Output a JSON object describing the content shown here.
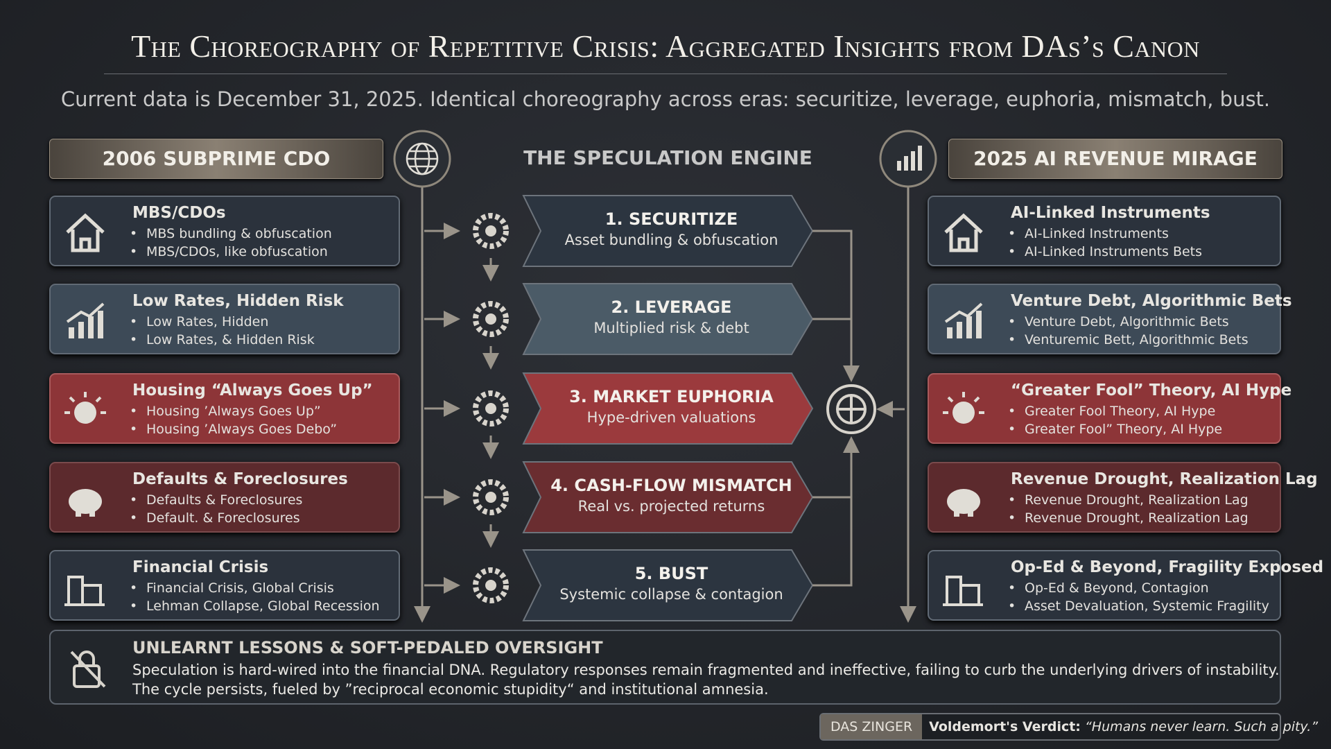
{
  "title": "The Choreography of Repetitive Crisis: Aggregated Insights from DAs’s Canon",
  "subtitle": "Current data is December 31, 2025. Identical choreography across eras: securitize, leverage, euphoria, mismatch, bust.",
  "left": {
    "header": "2006 SUBPRIME CDO",
    "cards": [
      {
        "title": "MBS/CDOs",
        "bullets": [
          "MBS bundling & obfuscation",
          "MBS/CDOs, like obfuscation"
        ]
      },
      {
        "title": "Low Rates, Hidden Risk",
        "bullets": [
          "Low Rates, Hidden",
          "Low Rates, & Hidden Risk"
        ]
      },
      {
        "title": "Housing “Always Goes Up”",
        "bullets": [
          "Housing ’Always Goes Up”",
          "Housing ’Always Goes Debo”"
        ]
      },
      {
        "title": "Defaults & Foreclosures",
        "bullets": [
          "Defaults & Foreclosures",
          "Default. & Foreclosures"
        ]
      },
      {
        "title": "Financial Crisis",
        "bullets": [
          "Financial Crisis, Global Crisis",
          "Lehman Collapse, Global Recession"
        ]
      }
    ]
  },
  "center": {
    "header": "THE SPECULATION ENGINE",
    "steps": [
      {
        "title": "1. SECURITIZE",
        "subtitle": "Asset bundling & obfuscation"
      },
      {
        "title": "2. LEVERAGE",
        "subtitle": "Multiplied risk & debt"
      },
      {
        "title": "3. MARKET EUPHORIA",
        "subtitle": "Hype-driven valuations"
      },
      {
        "title": "4. CASH-FLOW MISMATCH",
        "subtitle": "Real vs. projected returns"
      },
      {
        "title": "5. BUST",
        "subtitle": "Systemic collapse & contagion"
      }
    ]
  },
  "right": {
    "header": "2025 AI REVENUE MIRAGE",
    "cards": [
      {
        "title": "AI-Linked Instruments",
        "bullets": [
          "AI-Linked Instruments",
          "AI-Linked Instruments Bets"
        ]
      },
      {
        "title": "Venture Debt, Algorithmic Bets",
        "bullets": [
          "Venture Debt, Algorithmic Bets",
          "Venturemic Bett, Algorithmic Bets"
        ]
      },
      {
        "title": "“Greater Fool” Theory, AI Hype",
        "bullets": [
          "Greater Fool Theory, AI Hype",
          "Greater Fool” Theory, AI Hype"
        ]
      },
      {
        "title": "Revenue Drought, Realization Lag",
        "bullets": [
          "Revenue Drought, Realization Lag",
          "Revenue Drought, Realization Lag"
        ]
      },
      {
        "title": "Op-Ed & Beyond, Fragility Exposed",
        "bullets": [
          "Op-Ed & Beyond, Contagion",
          "Asset Devaluation, Systemic Fragility"
        ]
      }
    ]
  },
  "footer": {
    "title": "UNLEARNT LESSONS & SOFT-PEDALED OVERSIGHT",
    "lines": [
      "Speculation is hard-wired into the financial DNA. Regulatory responses remain fragmented and ineffective, failing to curb the underlying drivers of instability.",
      "The cycle persists, fueled by ”reciprocal economic stupidity“ and institutional amnesia."
    ]
  },
  "verdict": {
    "tag": "DAS ZINGER",
    "label": "Voldemort's Verdict:",
    "quote": "“Humans never learn. Such a pity.”"
  }
}
